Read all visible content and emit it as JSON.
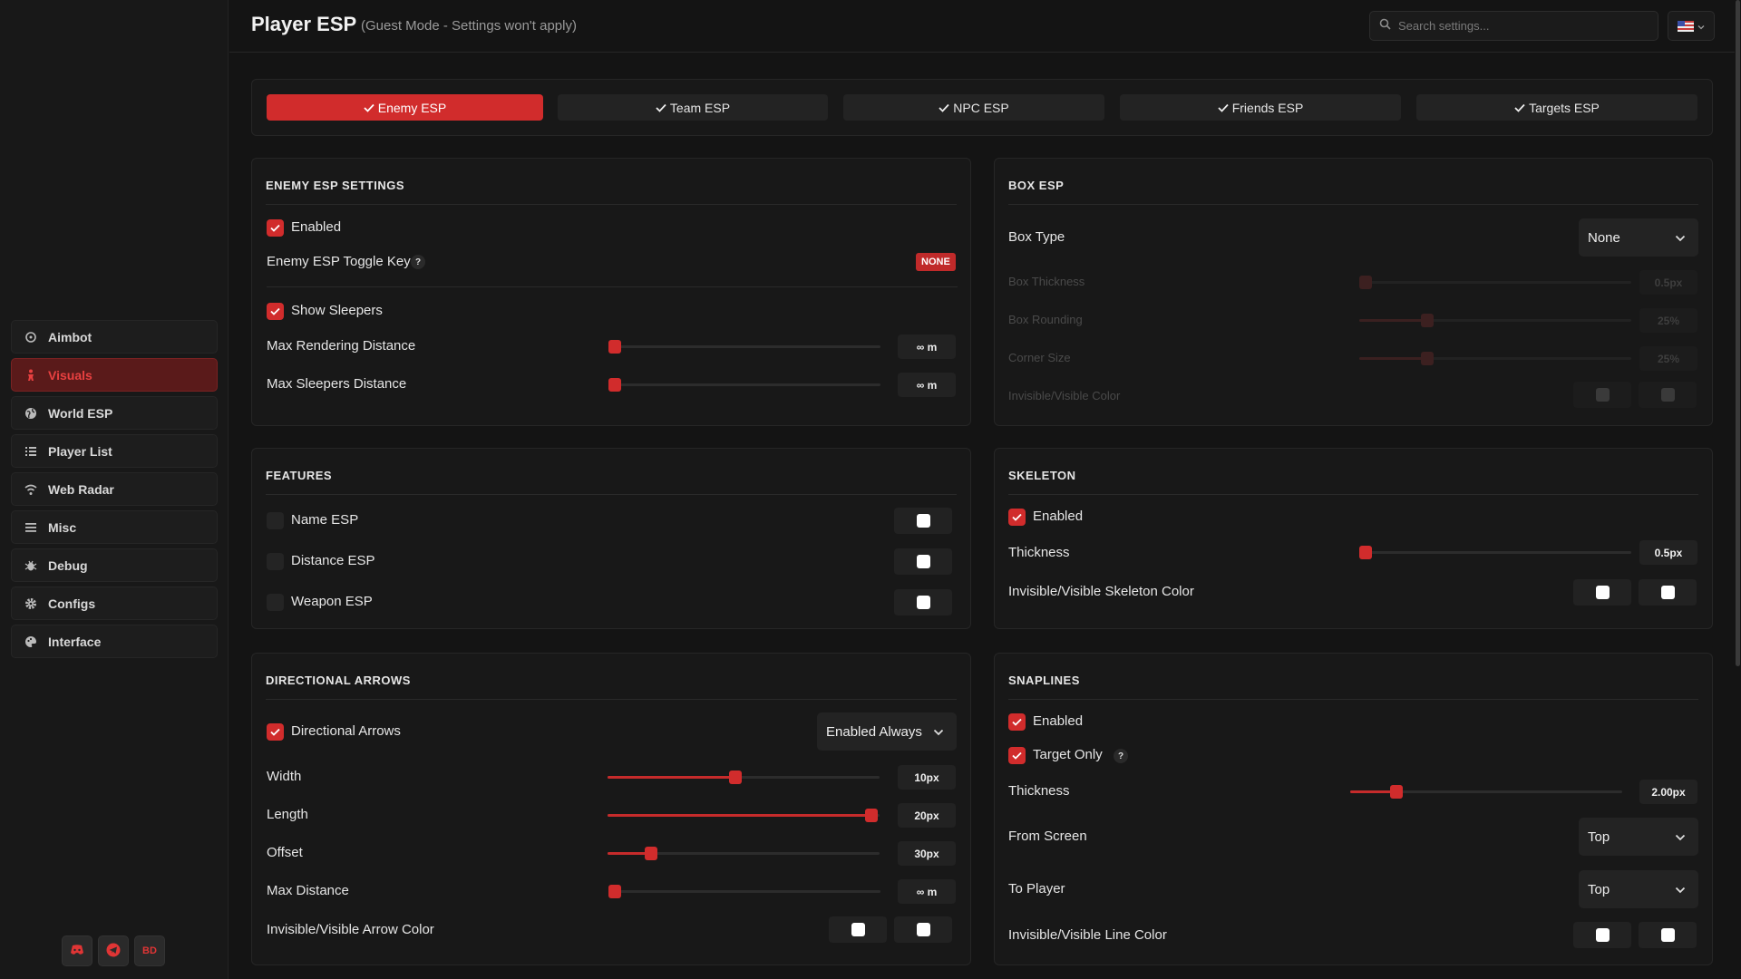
{
  "app": {
    "title": "Player ESP",
    "subtitle": "(Guest Mode - Settings won't apply)",
    "search_placeholder": "Search settings...",
    "accent": "#d12c2c"
  },
  "sidebar": {
    "items": [
      {
        "label": "Aimbot",
        "icon": "crosshair-icon"
      },
      {
        "label": "Visuals",
        "icon": "person-icon",
        "active": true
      },
      {
        "label": "World ESP",
        "icon": "globe-icon"
      },
      {
        "label": "Player List",
        "icon": "list-icon"
      },
      {
        "label": "Web Radar",
        "icon": "wifi-icon"
      },
      {
        "label": "Misc",
        "icon": "menu-icon"
      },
      {
        "label": "Debug",
        "icon": "bug-icon"
      },
      {
        "label": "Configs",
        "icon": "gear-icon"
      },
      {
        "label": "Interface",
        "icon": "palette-icon"
      }
    ],
    "social": {
      "bd_label": "BD"
    }
  },
  "tabs": [
    {
      "label": "Enemy ESP",
      "active": true
    },
    {
      "label": "Team ESP"
    },
    {
      "label": "NPC ESP"
    },
    {
      "label": "Friends ESP"
    },
    {
      "label": "Targets ESP"
    }
  ],
  "enemy": {
    "title": "ENEMY ESP SETTINGS",
    "enabled_label": "Enabled",
    "enabled": true,
    "toggle_key_label": "Enemy ESP Toggle Key",
    "help": "?",
    "toggle_key_value": "NONE",
    "show_sleepers_label": "Show Sleepers",
    "show_sleepers": true,
    "max_render_label": "Max Rendering Distance",
    "max_render_value": "∞ m",
    "max_render_fraction": 0.0,
    "max_sleepers_label": "Max Sleepers Distance",
    "max_sleepers_value": "∞ m",
    "max_sleepers_fraction": 0.0
  },
  "box": {
    "title": "BOX ESP",
    "box_type_label": "Box Type",
    "box_type_value": "None",
    "thickness_label": "Box Thickness",
    "thickness_value": "0.5px",
    "thickness_fraction": 0.0,
    "rounding_label": "Box Rounding",
    "rounding_value": "25%",
    "rounding_fraction": 0.25,
    "corner_label": "Corner Size",
    "corner_value": "25%",
    "corner_fraction": 0.25,
    "color_label": "Invisible/Visible Color"
  },
  "features": {
    "title": "FEATURES",
    "items": [
      {
        "label": "Name ESP",
        "checked": false
      },
      {
        "label": "Distance ESP",
        "checked": false
      },
      {
        "label": "Weapon ESP",
        "checked": false
      }
    ]
  },
  "skeleton": {
    "title": "SKELETON",
    "enabled_label": "Enabled",
    "enabled": true,
    "thickness_label": "Thickness",
    "thickness_value": "0.5px",
    "thickness_fraction": 0.0,
    "color_label": "Invisible/Visible Skeleton Color"
  },
  "arrows": {
    "title": "DIRECTIONAL ARROWS",
    "toggle_label": "Directional Arrows",
    "toggle": true,
    "mode_value": "Enabled Always",
    "width_label": "Width",
    "width_value": "10px",
    "width_fraction": 0.47,
    "length_label": "Length",
    "length_value": "20px",
    "length_fraction": 0.97,
    "offset_label": "Offset",
    "offset_value": "30px",
    "offset_fraction": 0.16,
    "max_distance_label": "Max Distance",
    "max_distance_value": "∞ m",
    "max_distance_fraction": 0.0,
    "color_label": "Invisible/Visible Arrow Color"
  },
  "snaplines": {
    "title": "SNAPLINES",
    "enabled_label": "Enabled",
    "enabled": true,
    "target_only_label": "Target Only",
    "target_only": true,
    "thickness_label": "Thickness",
    "thickness_value": "2.00px",
    "thickness_fraction": 0.17,
    "from_screen_label": "From Screen",
    "from_screen_value": "Top",
    "to_player_label": "To Player",
    "to_player_value": "Top",
    "color_label": "Invisible/Visible Line Color"
  }
}
